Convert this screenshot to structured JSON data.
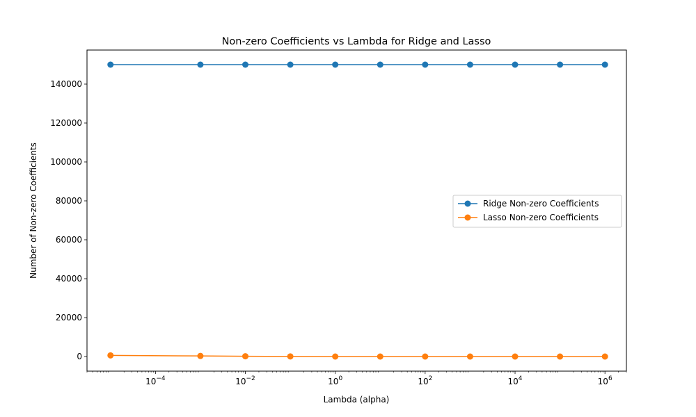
{
  "chart_data": {
    "type": "line",
    "title": "Non-zero Coefficients vs Lambda for Ridge and Lasso",
    "xlabel": "Lambda (alpha)",
    "ylabel": "Number of Non-zero Coefficients",
    "xscale": "log",
    "xlim": [
      3e-06,
      3000000.0
    ],
    "ylim": [
      -7500,
      157500
    ],
    "x_ticks": [
      {
        "value": 0.0001,
        "base": "10",
        "exp": "−4"
      },
      {
        "value": 0.01,
        "base": "10",
        "exp": "−2"
      },
      {
        "value": 1,
        "base": "10",
        "exp": "0"
      },
      {
        "value": 100,
        "base": "10",
        "exp": "2"
      },
      {
        "value": 10000,
        "base": "10",
        "exp": "4"
      },
      {
        "value": 1000000,
        "base": "10",
        "exp": "6"
      }
    ],
    "y_ticks": [
      0,
      20000,
      40000,
      60000,
      80000,
      100000,
      120000,
      140000
    ],
    "y_tick_labels": [
      "0",
      "20000",
      "40000",
      "60000",
      "80000",
      "100000",
      "120000",
      "140000"
    ],
    "grid": false,
    "legend_position": "center-right",
    "series": [
      {
        "name": "Ridge Non-zero Coefficients",
        "color": "#1f77b4",
        "x": [
          1e-05,
          0.001,
          0.01,
          0.1,
          1,
          10,
          100,
          1000,
          10000,
          100000,
          1000000
        ],
        "y": [
          150000,
          150000,
          150000,
          150000,
          150000,
          150000,
          150000,
          150000,
          150000,
          150000,
          150000
        ]
      },
      {
        "name": "Lasso Non-zero Coefficients",
        "color": "#ff7f0e",
        "x": [
          1e-05,
          0.001,
          0.01,
          0.1,
          1,
          10,
          100,
          1000,
          10000,
          100000,
          1000000
        ],
        "y": [
          600,
          300,
          150,
          50,
          0,
          0,
          0,
          0,
          0,
          0,
          0
        ]
      }
    ]
  }
}
